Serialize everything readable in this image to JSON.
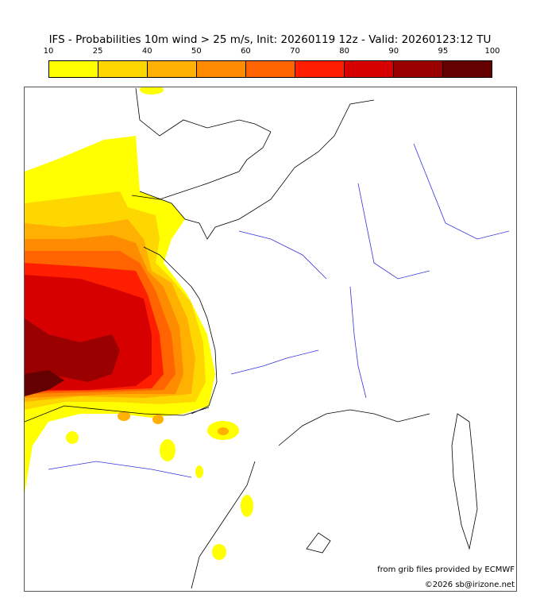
{
  "title": "IFS - Probabilities 10m wind > 25 m/s, Init: 20260119 12z - Valid: 20260123:12 TU",
  "colorbar": {
    "ticks": [
      "10",
      "25",
      "40",
      "50",
      "60",
      "70",
      "80",
      "90",
      "95",
      "100"
    ],
    "colors": [
      "#ffff00",
      "#ffd700",
      "#ffb000",
      "#ff8c00",
      "#ff6400",
      "#ff1e00",
      "#d70000",
      "#9b0000",
      "#640000"
    ]
  },
  "credits": {
    "source": "from grib files provided by ECMWF",
    "copyright": "©2026 sb@irizone.net"
  }
}
